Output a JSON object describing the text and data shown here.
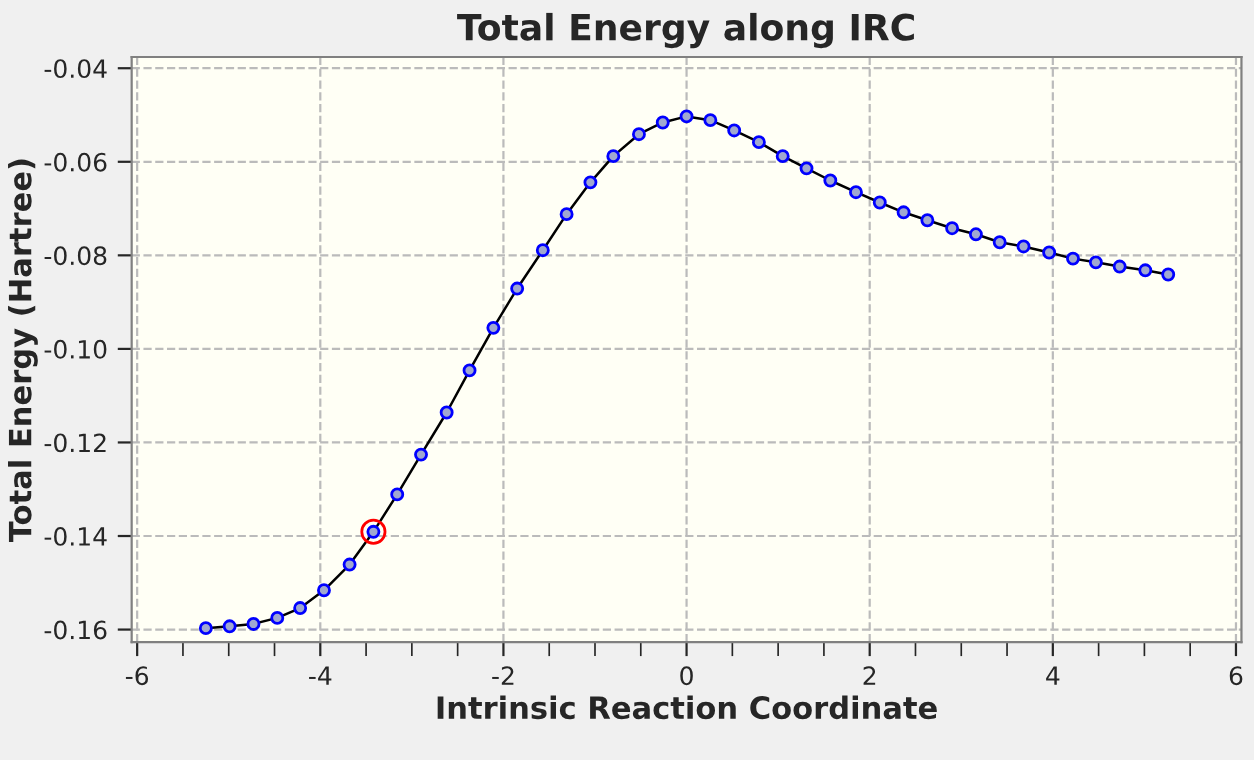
{
  "chart_data": {
    "type": "line",
    "title": "Total Energy along IRC",
    "xlabel": "Intrinsic Reaction Coordinate",
    "ylabel": "Total Energy (Hartree)",
    "xlim": [
      -6.06,
      6.06
    ],
    "ylim": [
      -0.1627,
      -0.0376
    ],
    "xticks": [
      {
        "value": -6,
        "label": "-6"
      },
      {
        "value": -4,
        "label": "-4"
      },
      {
        "value": -2,
        "label": "-2"
      },
      0,
      2,
      4,
      6
    ],
    "yticks": [
      {
        "value": -0.16,
        "label": "-0.16"
      },
      {
        "value": -0.14,
        "label": "-0.14"
      },
      {
        "value": -0.12,
        "label": "-0.12"
      },
      {
        "value": -0.1,
        "label": "-0.10"
      },
      {
        "value": -0.08,
        "label": "-0.08"
      },
      {
        "value": -0.06,
        "label": "-0.06"
      },
      {
        "value": -0.04,
        "label": "-0.04"
      }
    ],
    "grid": true,
    "marker": "circle",
    "line_style": "solid",
    "series": [
      {
        "color": "#0000ff",
        "x": [
          -5.25,
          -4.99,
          -4.73,
          -4.47,
          -4.22,
          -3.96,
          -3.68,
          -3.42,
          -3.16,
          -2.9,
          -2.62,
          -2.37,
          -2.11,
          -1.85,
          -1.57,
          -1.31,
          -1.05,
          -0.8,
          -0.52,
          -0.26,
          0.0,
          0.26,
          0.52,
          0.79,
          1.05,
          1.31,
          1.57,
          1.85,
          2.11,
          2.37,
          2.63,
          2.9,
          3.16,
          3.42,
          3.68,
          3.96,
          4.22,
          4.47,
          4.73,
          5.01,
          5.26
        ],
        "values": [
          -0.1597,
          -0.1593,
          -0.1588,
          -0.1575,
          -0.1554,
          -0.1516,
          -0.1461,
          -0.1391,
          -0.1311,
          -0.1226,
          -0.1136,
          -0.1046,
          -0.0955,
          -0.0871,
          -0.0789,
          -0.0712,
          -0.0644,
          -0.0588,
          -0.0541,
          -0.0516,
          -0.0503,
          -0.0511,
          -0.0533,
          -0.0558,
          -0.0588,
          -0.0614,
          -0.064,
          -0.0665,
          -0.0687,
          -0.0708,
          -0.0725,
          -0.0742,
          -0.0755,
          -0.0772,
          -0.0781,
          -0.0794,
          -0.0807,
          -0.0815,
          -0.0824,
          -0.0832,
          -0.0841
        ]
      },
      {
        "type": "scatter",
        "color": "#ff0000",
        "x": [
          -3.42
        ],
        "values": [
          -0.1391
        ]
      }
    ]
  }
}
